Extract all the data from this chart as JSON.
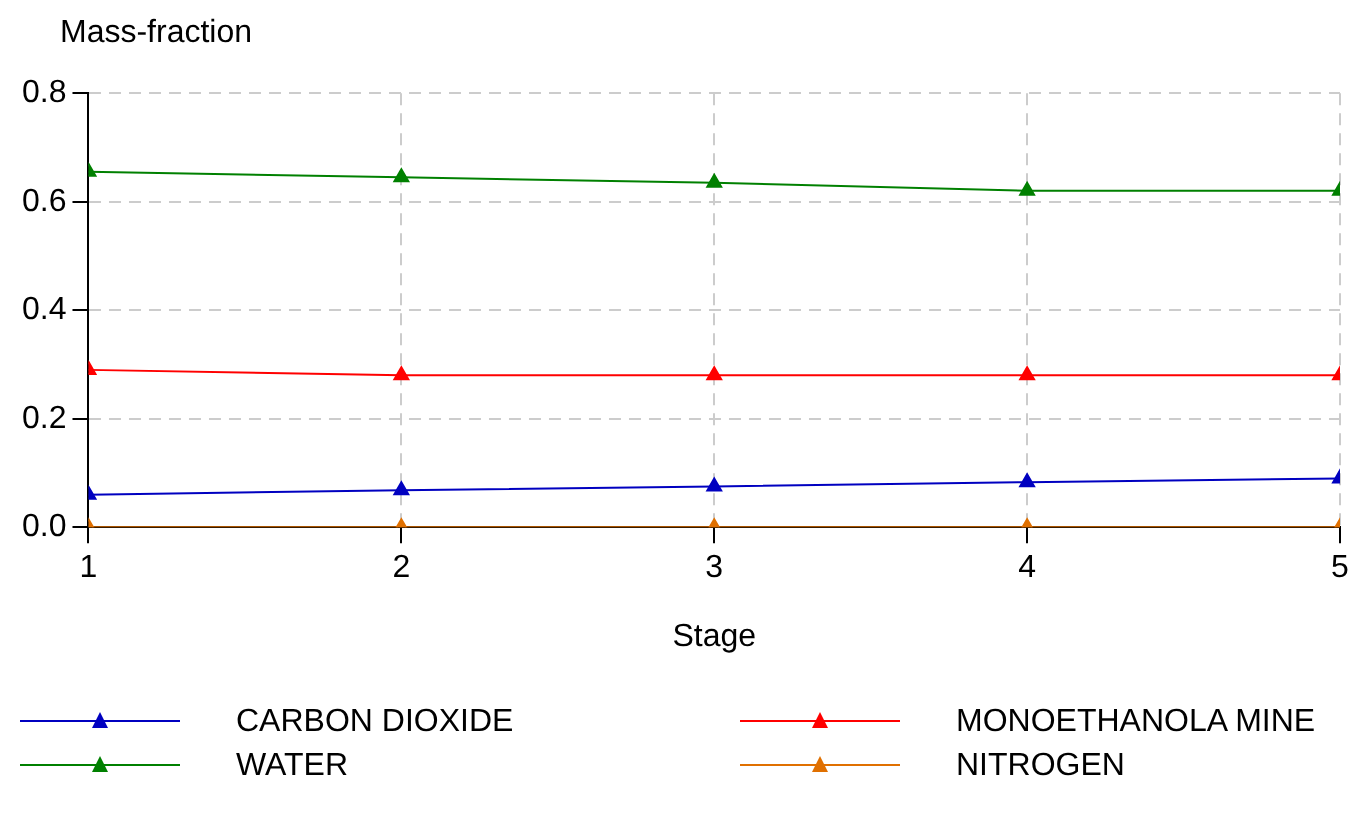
{
  "chart_data": {
    "type": "line",
    "xlabel": "Stage",
    "ylabel": "Mass-fraction",
    "x": [
      1,
      2,
      3,
      4,
      5
    ],
    "xlim": [
      1,
      5
    ],
    "xticks": [
      1,
      2,
      3,
      4,
      5
    ],
    "ylim": [
      0,
      0.8
    ],
    "yticks": [
      {
        "value": 0,
        "label": "0.0"
      },
      0.2,
      0.4,
      0.6,
      0.8
    ],
    "grid": true,
    "legend": "bottom",
    "marker": "triangle",
    "line_style": "solid",
    "series": [
      {
        "name": "CARBON DIOXIDE",
        "color": "#0000c0",
        "values": [
          0.06,
          0.068,
          0.075,
          0.083,
          0.09
        ]
      },
      {
        "name": "MONOETHANOLA MINE",
        "color": "#ff0000",
        "values": [
          0.29,
          0.28,
          0.28,
          0.28,
          0.28
        ]
      },
      {
        "name": "WATER",
        "color": "#008000",
        "values": [
          0.655,
          0.645,
          0.635,
          0.62,
          0.62
        ]
      },
      {
        "name": "NITROGEN",
        "color": "#e07000",
        "values": [
          0,
          0,
          0,
          0,
          0
        ]
      }
    ]
  }
}
